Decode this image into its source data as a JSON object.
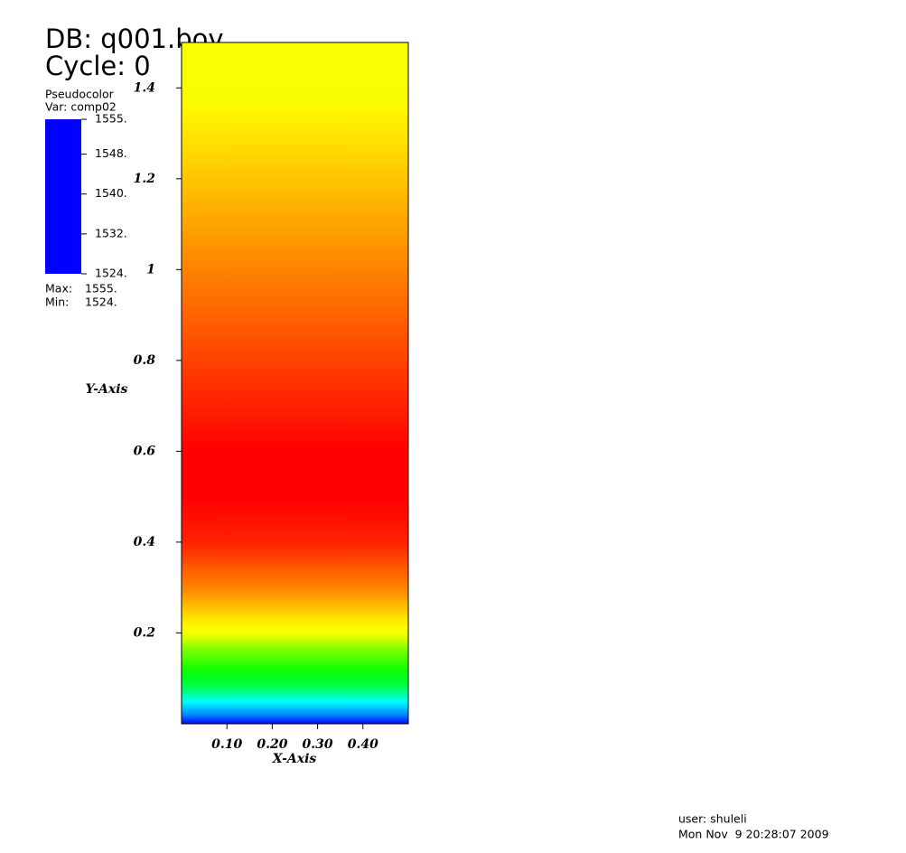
{
  "chart_data": {
    "type": "pseudocolor",
    "title": "DB: q001.bov",
    "subtitle": "Cycle: 0",
    "xlabel": "X-Axis",
    "ylabel": "Y-Axis",
    "xlim": [
      0,
      0.5
    ],
    "ylim": [
      0,
      1.5
    ],
    "xticks": [
      {
        "value": 0.1,
        "label": "0.10"
      },
      {
        "value": 0.2,
        "label": "0.20"
      },
      {
        "value": 0.3,
        "label": "0.30"
      },
      {
        "value": 0.4,
        "label": "0.40"
      }
    ],
    "yticks": [
      0.2,
      0.4,
      0.6,
      0.8,
      1.0,
      1.2,
      1.4
    ],
    "y": [
      0,
      0.02,
      0.05,
      0.08,
      0.12,
      0.16,
      0.2,
      0.23,
      0.3,
      0.4,
      0.5,
      0.6,
      0.7,
      0.8,
      0.9,
      1.0,
      1.1,
      1.2,
      1.3,
      1.4,
      1.5
    ],
    "values": [
      1524,
      1528,
      1532,
      1537,
      1540,
      1543,
      1547,
      1548,
      1551,
      1554,
      1555,
      1555,
      1554,
      1553,
      1552,
      1551,
      1550,
      1549,
      1548,
      1547,
      1547
    ],
    "legend": {
      "plot": "Pseudocolor",
      "var": "Var: comp02",
      "range": [
        1524,
        1555
      ],
      "ticks": [
        {
          "value": 1555,
          "label": "1555."
        },
        {
          "value": 1548,
          "label": "1548."
        },
        {
          "value": 1540,
          "label": "1540."
        },
        {
          "value": 1532,
          "label": "1532."
        },
        {
          "value": 1524,
          "label": "1524."
        }
      ],
      "max_label": "Max:",
      "max": {
        "value": 1555,
        "label": "1555."
      },
      "min_label": "Min:",
      "min": {
        "value": 1524,
        "label": "1524."
      }
    },
    "colors": [
      "#0000ff",
      "#00ffff",
      "#00ff00",
      "#ffff00",
      "#ff0000"
    ],
    "user": "user: shuleli",
    "date": "Mon Nov  9 20:28:07 2009"
  }
}
